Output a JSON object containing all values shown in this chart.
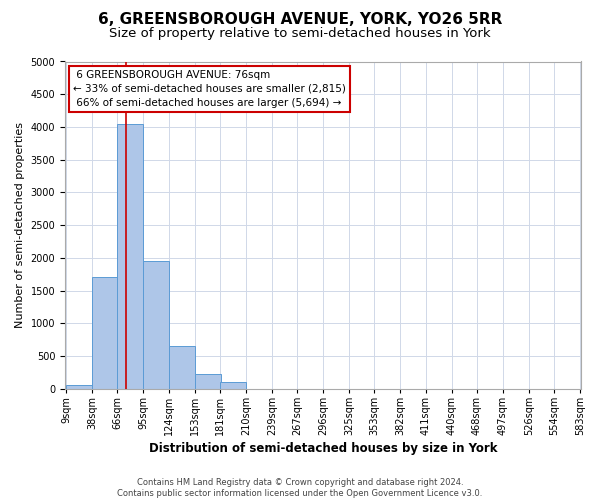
{
  "title": "6, GREENSBOROUGH AVENUE, YORK, YO26 5RR",
  "subtitle": "Size of property relative to semi-detached houses in York",
  "xlabel": "Distribution of semi-detached houses by size in York",
  "ylabel": "Number of semi-detached properties",
  "footer_line1": "Contains HM Land Registry data © Crown copyright and database right 2024.",
  "footer_line2": "Contains public sector information licensed under the Open Government Licence v3.0.",
  "property_address": "6 GREENSBOROUGH AVENUE: 76sqm",
  "pct_smaller": "33% of semi-detached houses are smaller (2,815)",
  "pct_larger": "66% of semi-detached houses are larger (5,694)",
  "property_sqm": 76,
  "bar_left_edges": [
    9,
    38,
    66,
    95,
    124,
    153,
    181,
    210,
    239,
    267,
    296,
    325,
    353,
    382,
    411,
    440,
    468,
    497,
    526,
    554
  ],
  "bar_heights": [
    50,
    1700,
    4050,
    1950,
    650,
    230,
    100,
    0,
    0,
    0,
    0,
    0,
    0,
    0,
    0,
    0,
    0,
    0,
    0,
    0
  ],
  "bin_width": 29,
  "bar_color": "#aec6e8",
  "bar_edge_color": "#5b9bd5",
  "vline_color": "#cc0000",
  "annotation_box_color": "#cc0000",
  "ylim": [
    0,
    5000
  ],
  "yticks": [
    0,
    500,
    1000,
    1500,
    2000,
    2500,
    3000,
    3500,
    4000,
    4500,
    5000
  ],
  "x_tick_labels": [
    "9sqm",
    "38sqm",
    "66sqm",
    "95sqm",
    "124sqm",
    "153sqm",
    "181sqm",
    "210sqm",
    "239sqm",
    "267sqm",
    "296sqm",
    "325sqm",
    "353sqm",
    "382sqm",
    "411sqm",
    "440sqm",
    "468sqm",
    "497sqm",
    "526sqm",
    "554sqm",
    "583sqm"
  ],
  "background_color": "#ffffff",
  "grid_color": "#d0d8e8",
  "title_fontsize": 11,
  "subtitle_fontsize": 9.5,
  "axis_label_fontsize": 8,
  "tick_fontsize": 7,
  "annotation_fontsize": 7.5
}
